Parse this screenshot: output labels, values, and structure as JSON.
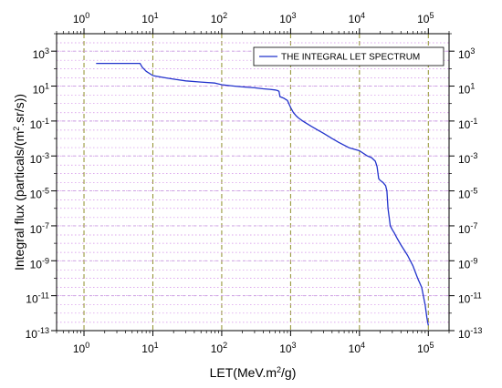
{
  "chart_data": {
    "type": "line",
    "xscale": "log",
    "yscale": "log",
    "xlabel": "LET(MeV.m2/g)",
    "ylabel": "Integral flux (particals/(m2.sr/s))",
    "xlim": [
      0.4,
      200000
    ],
    "ylim": [
      1e-13,
      10000
    ],
    "x_ticks": [
      "10^0",
      "10^1",
      "10^2",
      "10^3",
      "10^4",
      "10^5"
    ],
    "y_ticks": [
      "10^-13",
      "10^-11",
      "10^-9",
      "10^-7",
      "10^-5",
      "10^-3",
      "10^-1",
      "10^1",
      "10^3"
    ],
    "grid": true,
    "legend_position": "top-right",
    "series": [
      {
        "name": "THE INTEGRAL LET SPECTRUM",
        "color": "#2233cc",
        "x": [
          1.5,
          2,
          3,
          4,
          5,
          6,
          6.5,
          7,
          8,
          10,
          15,
          20,
          30,
          50,
          80,
          100,
          150,
          200,
          300,
          400,
          500,
          600,
          650,
          680,
          700,
          800,
          900,
          1000,
          1100,
          1200,
          1300,
          1500,
          2000,
          2500,
          3000,
          4000,
          5000,
          7000,
          10000,
          13000,
          15000,
          17000,
          18000,
          19000,
          20000,
          22000,
          24000,
          25000,
          26000,
          27000,
          28000,
          30000,
          32000,
          35000,
          40000,
          50000,
          60000,
          70000,
          80000,
          90000,
          95000,
          98000,
          100000
        ],
        "y": [
          200,
          200,
          200,
          200,
          200,
          200,
          200,
          120,
          70,
          40,
          30,
          25,
          20,
          17,
          15,
          12,
          10,
          9,
          8,
          7,
          6.5,
          6,
          5.5,
          5,
          2.5,
          2,
          1.5,
          0.6,
          0.3,
          0.2,
          0.15,
          0.1,
          0.05,
          0.03,
          0.02,
          0.01,
          0.006,
          0.003,
          0.002,
          0.001,
          0.0008,
          0.0005,
          0.00025,
          5e-05,
          4e-05,
          3e-05,
          2e-05,
          1e-05,
          1e-06,
          3e-07,
          1e-07,
          6e-08,
          4e-08,
          2e-08,
          8e-09,
          2e-09,
          5e-10,
          1e-10,
          3e-11,
          3e-12,
          6e-13,
          3e-13,
          2e-13
        ]
      }
    ]
  }
}
